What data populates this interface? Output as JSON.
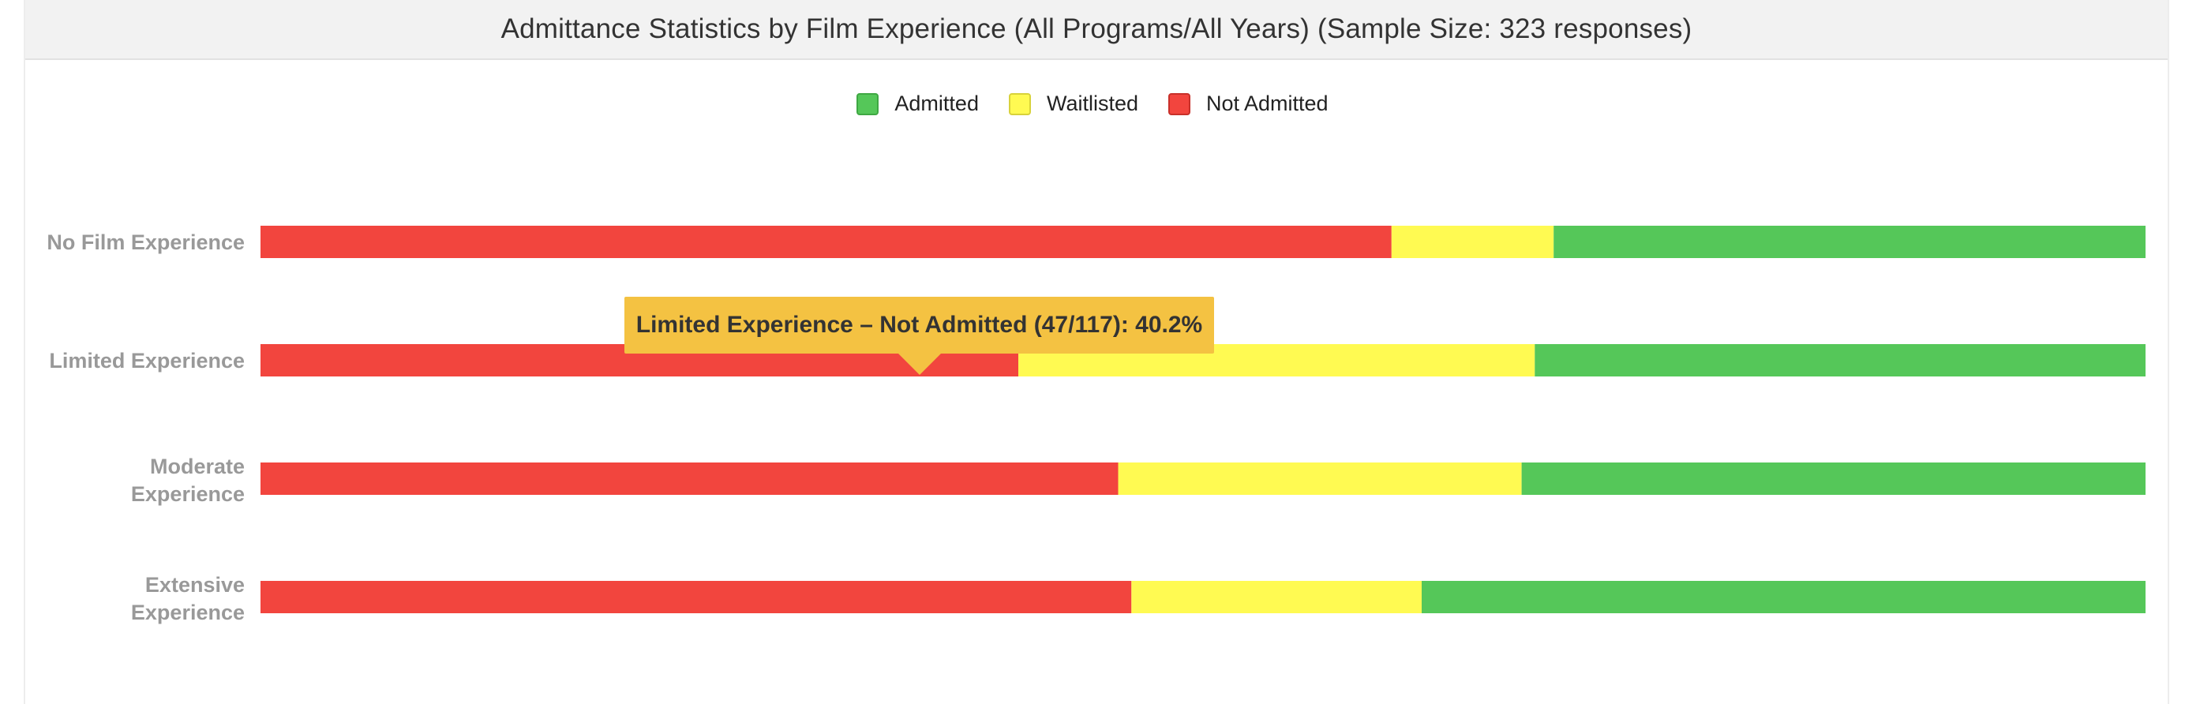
{
  "title": "Admittance Statistics by Film Experience (All Programs/All Years) (Sample Size: 323 responses)",
  "legend": [
    {
      "label": "Admitted",
      "color": "#55c759",
      "border": "#3fa843"
    },
    {
      "label": "Waitlisted",
      "color": "#fffa52",
      "border": "#d8d23a"
    },
    {
      "label": "Not Admitted",
      "color": "#f2453e",
      "border": "#c8302a"
    }
  ],
  "tooltip": {
    "text": "Limited Experience – Not Admitted (47/117): 40.2%"
  },
  "chart_data": {
    "type": "bar",
    "orientation": "horizontal",
    "stacked": true,
    "normalized_percent": true,
    "title": "Admittance Statistics by Film Experience (All Programs/All Years) (Sample Size: 323 responses)",
    "categories": [
      "No Film Experience",
      "Limited Experience",
      "Moderate Experience",
      "Extensive Experience"
    ],
    "series": [
      {
        "name": "Not Admitted",
        "color": "#f2453e",
        "values": [
          60.0,
          40.2,
          45.5,
          46.2
        ]
      },
      {
        "name": "Waitlisted",
        "color": "#fffa52",
        "values": [
          8.6,
          27.4,
          21.4,
          15.4
        ]
      },
      {
        "name": "Admitted",
        "color": "#55c759",
        "values": [
          31.4,
          32.4,
          33.1,
          38.4
        ]
      }
    ],
    "xlim": [
      0,
      100
    ],
    "legend_position": "top-center",
    "grid": false
  }
}
